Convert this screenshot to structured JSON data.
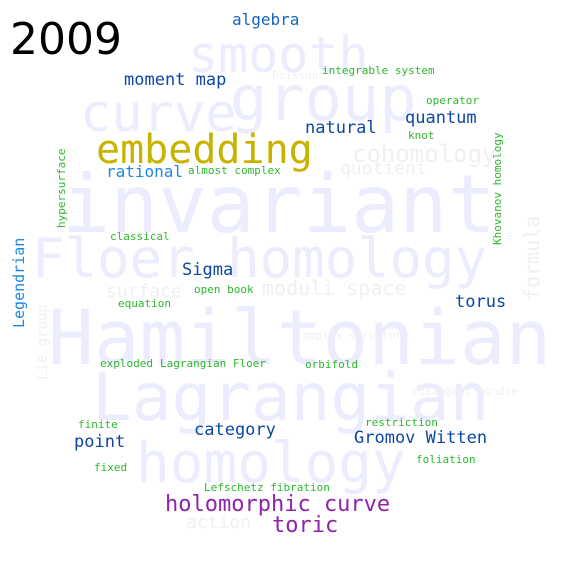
{
  "year": "2009",
  "background_words": [
    {
      "text": "smooth",
      "color": "#ececff"
    },
    {
      "text": "group",
      "color": "#ececff"
    },
    {
      "text": "curve",
      "color": "#ececff"
    },
    {
      "text": "invariant",
      "color": "#ececff"
    },
    {
      "text": "Floer homology",
      "color": "#ececff"
    },
    {
      "text": "Hamiltonian",
      "color": "#ececff"
    },
    {
      "text": "Lagrangian",
      "color": "#ececff"
    },
    {
      "text": "homology",
      "color": "#ececff"
    },
    {
      "text": "cohomology",
      "color": "#f0f0f0"
    },
    {
      "text": "quotient",
      "color": "#f0f0f0"
    },
    {
      "text": "moduli space",
      "color": "#f0f0f0"
    },
    {
      "text": "surface",
      "color": "#f0f0f0"
    },
    {
      "text": "formula",
      "color": "#f0f0f0"
    },
    {
      "text": "action",
      "color": "#f0f0f0"
    },
    {
      "text": "Lie group",
      "color": "#f0f0f0"
    },
    {
      "text": "complex structure",
      "color": "#f0f0f0"
    },
    {
      "text": "cotangent bundle",
      "color": "#f0f0f0"
    },
    {
      "text": "Poisson",
      "color": "#f0f0f0"
    }
  ],
  "words": [
    {
      "text": "algebra",
      "color": "#1565c0"
    },
    {
      "text": "moment map",
      "color": "#0d47a1"
    },
    {
      "text": "integrable system",
      "color": "#2eb82e"
    },
    {
      "text": "operator",
      "color": "#2eb82e"
    },
    {
      "text": "natural",
      "color": "#0d47a1"
    },
    {
      "text": "quantum",
      "color": "#0d47a1"
    },
    {
      "text": "knot",
      "color": "#2eb82e"
    },
    {
      "text": "Khovanov homology",
      "color": "#2eb82e"
    },
    {
      "text": "embedding",
      "color": "#c8b400"
    },
    {
      "text": "rational",
      "color": "#1e88e5"
    },
    {
      "text": "almost complex",
      "color": "#2eb82e"
    },
    {
      "text": "hypersurface",
      "color": "#2eb82e"
    },
    {
      "text": "classical",
      "color": "#2eb82e"
    },
    {
      "text": "Legendrian",
      "color": "#1e88e5"
    },
    {
      "text": "Sigma",
      "color": "#0d47a1"
    },
    {
      "text": "open book",
      "color": "#2eb82e"
    },
    {
      "text": "equation",
      "color": "#2eb82e"
    },
    {
      "text": "torus",
      "color": "#0d47a1"
    },
    {
      "text": "exploded",
      "color": "#2eb82e"
    },
    {
      "text": "Lagrangian Floer",
      "color": "#2eb82e"
    },
    {
      "text": "orbifold",
      "color": "#2eb82e"
    },
    {
      "text": "restriction",
      "color": "#2eb82e"
    },
    {
      "text": "finite",
      "color": "#2eb82e"
    },
    {
      "text": "point",
      "color": "#0d47a1"
    },
    {
      "text": "category",
      "color": "#0d47a1"
    },
    {
      "text": "Gromov Witten",
      "color": "#0d47a1"
    },
    {
      "text": "foliation",
      "color": "#2eb82e"
    },
    {
      "text": "fixed",
      "color": "#2eb82e"
    },
    {
      "text": "Lefschetz fibration",
      "color": "#2eb82e"
    },
    {
      "text": "holomorphic curve",
      "color": "#8e24aa"
    },
    {
      "text": "toric",
      "color": "#8e24aa"
    }
  ]
}
